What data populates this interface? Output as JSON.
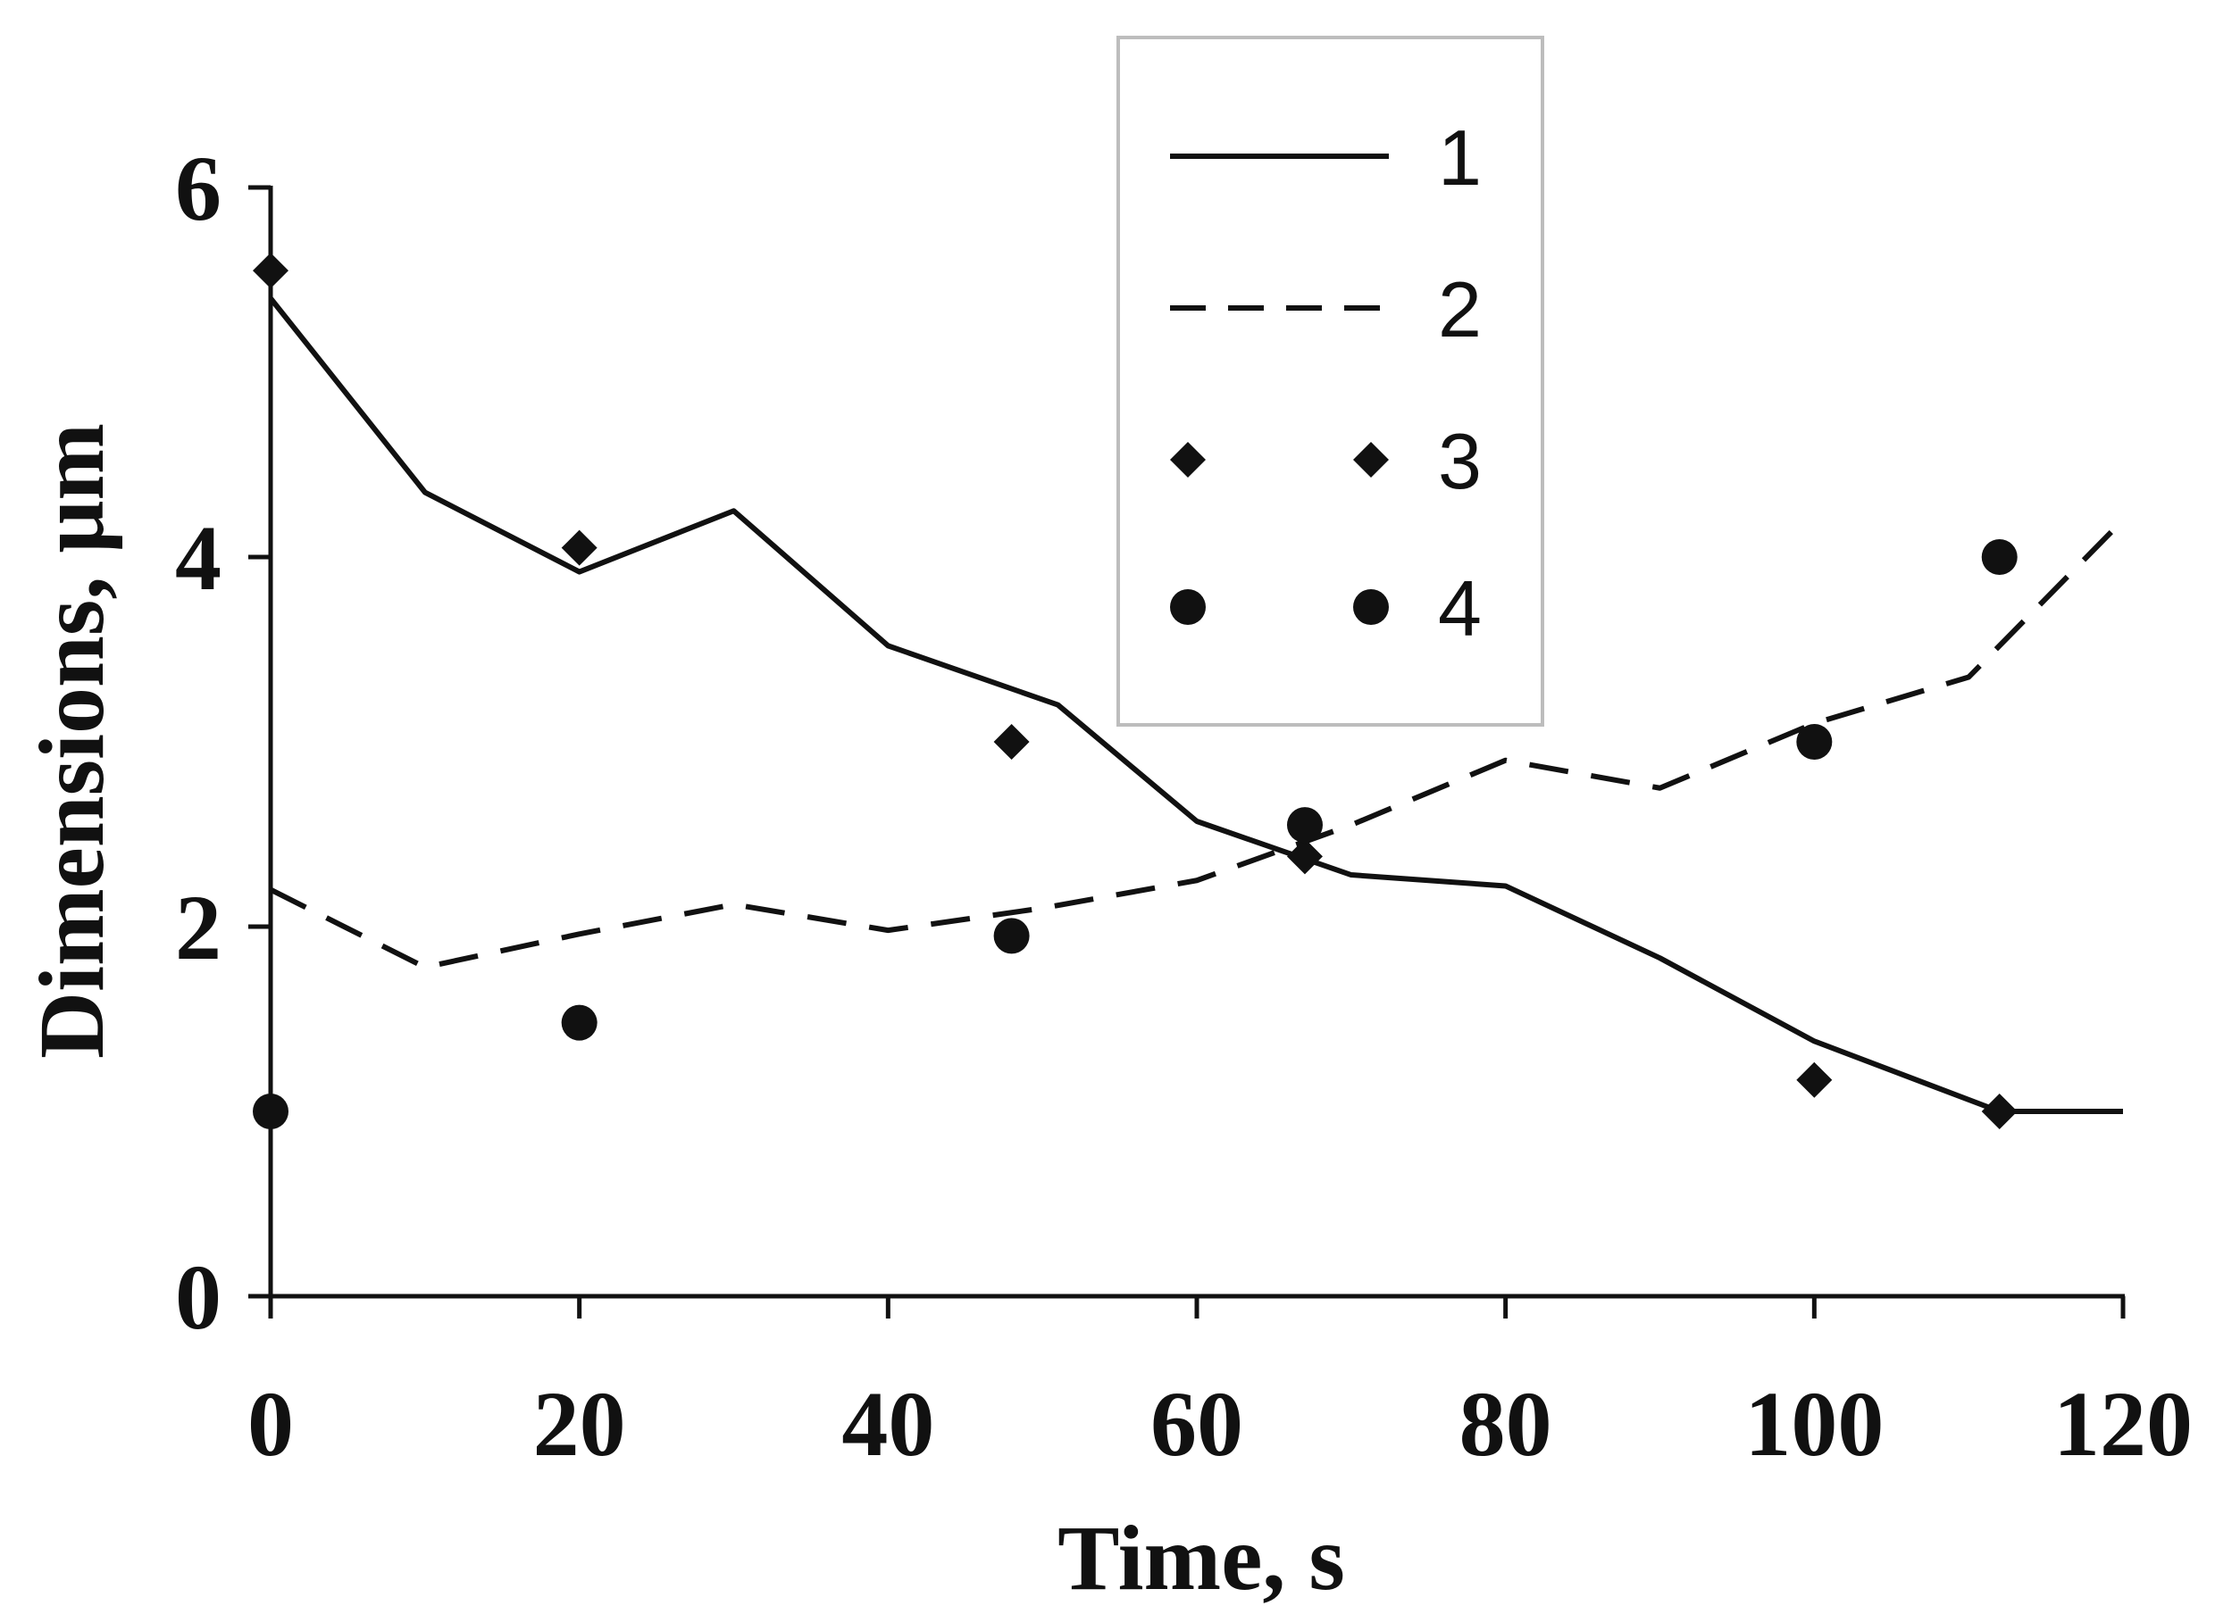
{
  "chart_data": {
    "type": "line",
    "title": "",
    "xlabel": "Time, s",
    "ylabel": "Dimensions, μm",
    "xlim": [
      0,
      120
    ],
    "ylim": [
      0,
      6
    ],
    "xticks": [
      0,
      20,
      40,
      60,
      80,
      100,
      120
    ],
    "yticks": [
      0,
      2,
      4,
      6
    ],
    "grid": false,
    "legend_position": "top-center",
    "series": [
      {
        "name": "1",
        "style": "solid-line",
        "x": [
          0,
          10,
          20,
          30,
          40,
          51,
          60,
          70,
          80,
          90,
          100,
          112,
          120
        ],
        "y": [
          5.4,
          4.35,
          3.92,
          4.25,
          3.52,
          3.2,
          2.57,
          2.28,
          2.22,
          1.83,
          1.38,
          1.0,
          1.0
        ]
      },
      {
        "name": "2",
        "style": "dashed-line",
        "x": [
          0,
          10,
          20,
          30,
          40,
          50,
          60,
          70,
          80,
          90,
          100,
          110,
          120
        ],
        "y": [
          2.2,
          1.78,
          1.96,
          2.12,
          1.98,
          2.1,
          2.25,
          2.55,
          2.9,
          2.75,
          3.1,
          3.35,
          4.2
        ]
      },
      {
        "name": "3",
        "style": "diamond-markers",
        "x": [
          0,
          20,
          48,
          67,
          100,
          112
        ],
        "y": [
          5.55,
          4.05,
          3.0,
          2.38,
          1.17,
          1.0
        ]
      },
      {
        "name": "4",
        "style": "circle-markers",
        "x": [
          0,
          20,
          48,
          67,
          100,
          112
        ],
        "y": [
          1.0,
          1.48,
          1.95,
          2.55,
          3.0,
          4.0
        ]
      }
    ]
  }
}
